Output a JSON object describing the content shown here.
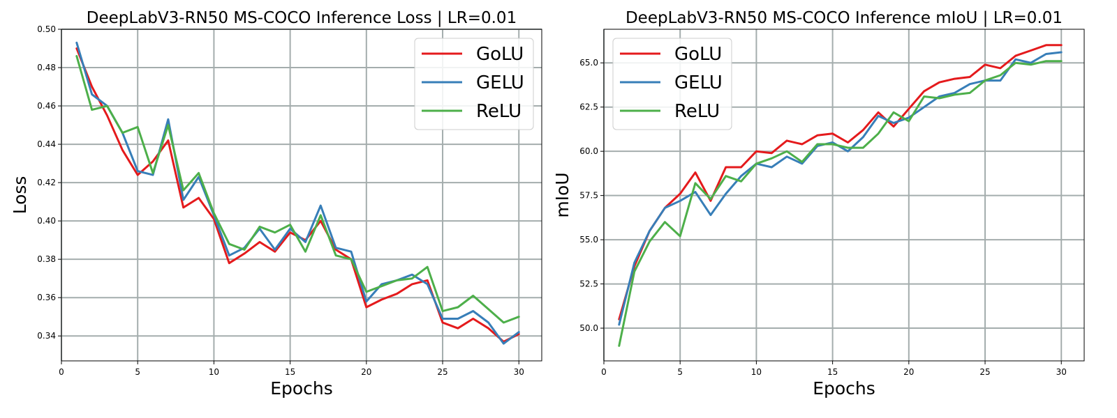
{
  "chart_data": [
    {
      "type": "line",
      "title": "DeepLabV3-RN50 MS-COCO Inference Loss | LR=0.01",
      "xlabel": "Epochs",
      "ylabel": "Loss",
      "xlim": [
        0,
        31.5
      ],
      "ylim": [
        0.327,
        0.5
      ],
      "xticks": [
        0,
        5,
        10,
        15,
        20,
        25,
        30
      ],
      "yticks": [
        0.34,
        0.36,
        0.38,
        0.4,
        0.42,
        0.44,
        0.46,
        0.48,
        0.5
      ],
      "ytick_labels": [
        "0.34",
        "0.36",
        "0.38",
        "0.40",
        "0.42",
        "0.44",
        "0.46",
        "0.48",
        "0.50"
      ],
      "grid": true,
      "legend_position": "top-right",
      "x": [
        1,
        2,
        3,
        4,
        5,
        6,
        7,
        8,
        9,
        10,
        11,
        12,
        13,
        14,
        15,
        16,
        17,
        18,
        19,
        20,
        21,
        22,
        23,
        24,
        25,
        26,
        27,
        28,
        29,
        30
      ],
      "series": [
        {
          "name": "GoLU",
          "color": "#e41a1c",
          "values": [
            0.49,
            0.47,
            0.455,
            0.437,
            0.424,
            0.431,
            0.442,
            0.407,
            0.412,
            0.401,
            0.378,
            0.383,
            0.389,
            0.384,
            0.394,
            0.39,
            0.4,
            0.385,
            0.38,
            0.355,
            0.359,
            0.362,
            0.367,
            0.369,
            0.347,
            0.344,
            0.349,
            0.344,
            0.337,
            0.341
          ]
        },
        {
          "name": "GELU",
          "color": "#377eb8",
          "values": [
            0.493,
            0.466,
            0.46,
            0.446,
            0.426,
            0.424,
            0.453,
            0.411,
            0.423,
            0.403,
            0.382,
            0.386,
            0.396,
            0.385,
            0.396,
            0.389,
            0.408,
            0.386,
            0.384,
            0.358,
            0.367,
            0.369,
            0.372,
            0.367,
            0.349,
            0.349,
            0.353,
            0.347,
            0.336,
            0.342
          ]
        },
        {
          "name": "ReLU",
          "color": "#4daf4a",
          "values": [
            0.486,
            0.458,
            0.46,
            0.446,
            0.449,
            0.425,
            0.45,
            0.416,
            0.425,
            0.404,
            0.388,
            0.385,
            0.397,
            0.394,
            0.398,
            0.384,
            0.403,
            0.382,
            0.38,
            0.363,
            0.366,
            0.369,
            0.37,
            0.376,
            0.353,
            0.355,
            0.361,
            0.354,
            0.347,
            0.35
          ]
        }
      ]
    },
    {
      "type": "line",
      "title": "DeepLabV3-RN50 MS-COCO Inference mIoU | LR=0.01",
      "xlabel": "Epochs",
      "ylabel": "mIoU",
      "xlim": [
        0,
        31.5
      ],
      "ylim": [
        48.15,
        66.9
      ],
      "xticks": [
        0,
        5,
        10,
        15,
        20,
        25,
        30
      ],
      "yticks": [
        50.0,
        52.5,
        55.0,
        57.5,
        60.0,
        62.5,
        65.0
      ],
      "ytick_labels": [
        "50.0",
        "52.5",
        "55.0",
        "57.5",
        "60.0",
        "62.5",
        "65.0"
      ],
      "grid": true,
      "legend_position": "top-left",
      "x": [
        1,
        2,
        3,
        4,
        5,
        6,
        7,
        8,
        9,
        10,
        11,
        12,
        13,
        14,
        15,
        16,
        17,
        18,
        19,
        20,
        21,
        22,
        23,
        24,
        25,
        26,
        27,
        28,
        29,
        30
      ],
      "series": [
        {
          "name": "GoLU",
          "color": "#e41a1c",
          "values": [
            50.5,
            53.5,
            55.5,
            56.8,
            57.6,
            58.8,
            57.2,
            59.1,
            59.1,
            60.0,
            59.9,
            60.6,
            60.4,
            60.9,
            61.0,
            60.5,
            61.2,
            62.2,
            61.4,
            62.4,
            63.4,
            63.9,
            64.1,
            64.2,
            64.9,
            64.7,
            65.4,
            65.7,
            66.0,
            66.0
          ]
        },
        {
          "name": "GELU",
          "color": "#377eb8",
          "values": [
            50.2,
            53.7,
            55.5,
            56.8,
            57.2,
            57.7,
            56.4,
            57.6,
            58.6,
            59.3,
            59.1,
            59.7,
            59.3,
            60.3,
            60.5,
            60.0,
            60.8,
            62.0,
            61.6,
            61.9,
            62.5,
            63.1,
            63.3,
            63.8,
            64.0,
            64.0,
            65.2,
            65.0,
            65.5,
            65.6
          ]
        },
        {
          "name": "ReLU",
          "color": "#4daf4a",
          "values": [
            49.0,
            53.2,
            54.9,
            56.0,
            55.2,
            58.2,
            57.3,
            58.6,
            58.3,
            59.3,
            59.6,
            60.0,
            59.4,
            60.4,
            60.4,
            60.2,
            60.2,
            61.0,
            62.2,
            61.7,
            63.1,
            63.0,
            63.2,
            63.3,
            64.0,
            64.3,
            65.0,
            64.9,
            65.1,
            65.1
          ]
        }
      ]
    }
  ]
}
